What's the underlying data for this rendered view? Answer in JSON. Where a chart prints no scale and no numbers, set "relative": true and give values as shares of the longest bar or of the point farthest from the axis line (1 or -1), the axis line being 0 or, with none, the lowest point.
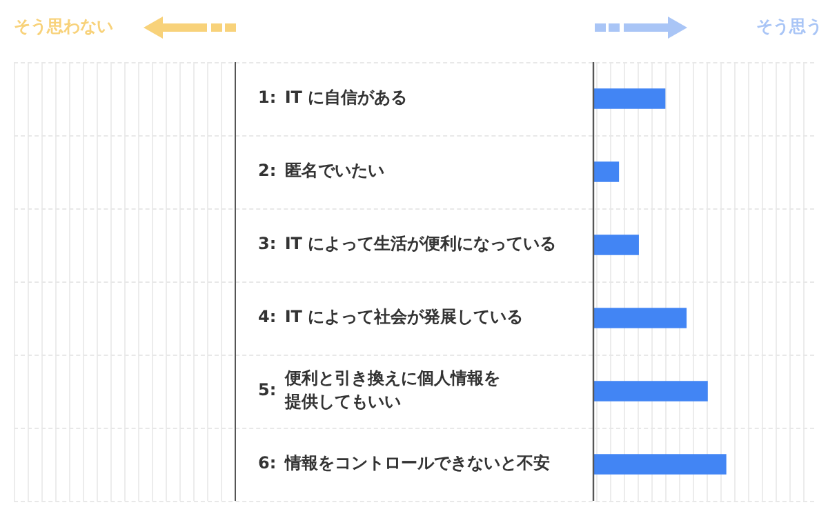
{
  "chart_data": {
    "type": "bar",
    "orientation": "horizontal",
    "relative": true,
    "categories": [
      "1: IT に自信がある",
      "2: 匿名でいたい",
      "3: IT によって生活が便利になっている",
      "4: IT によって社会が発展している",
      "5: 便利と引き換えに個人情報を提供してもいい",
      "6: 情報をコントロールできないと不安"
    ],
    "values": [
      0.54,
      0.19,
      0.34,
      0.7,
      0.86,
      1
    ],
    "color": "#4285f4",
    "annotations": [
      "そう思わない",
      "そう思う"
    ]
  }
}
